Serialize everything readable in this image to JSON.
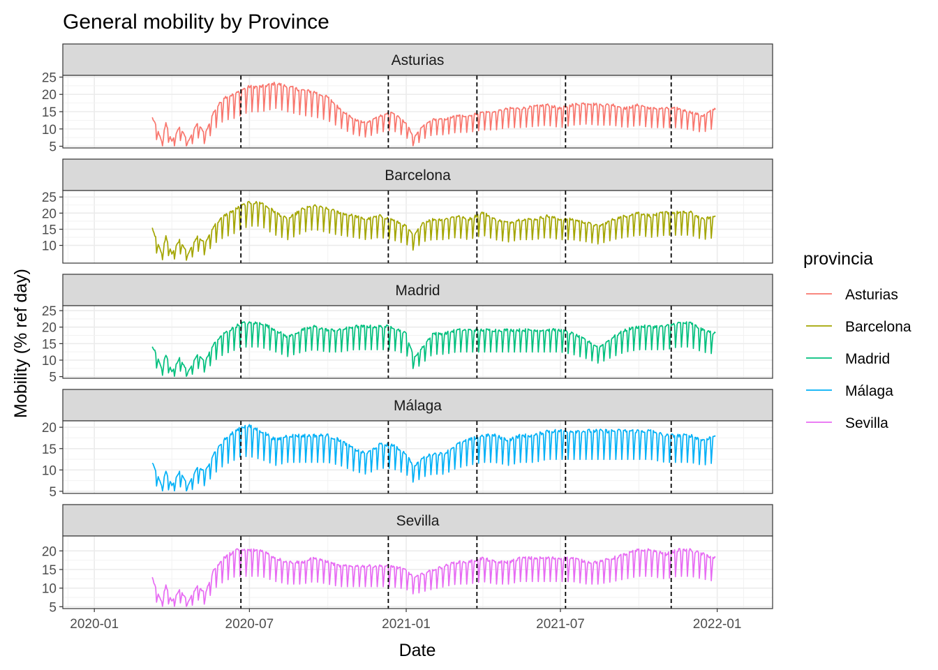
{
  "chart_data": {
    "type": "line",
    "title": "General mobility by Province",
    "xlabel": "Date",
    "ylabel": "Mobility (% ref day)",
    "x_range": [
      "2019-11-25",
      "2022-03-07"
    ],
    "x_ticks": [
      {
        "date": "2020-01-01",
        "label": "2020-01"
      },
      {
        "date": "2020-07-01",
        "label": "2020-07"
      },
      {
        "date": "2021-01-01",
        "label": "2021-01"
      },
      {
        "date": "2021-07-01",
        "label": "2021-07"
      },
      {
        "date": "2022-01-01",
        "label": "2022-01"
      }
    ],
    "vlines": [
      "2020-06-21",
      "2020-12-11",
      "2021-03-25",
      "2021-07-07",
      "2021-11-08"
    ],
    "legend": {
      "title": "provincia",
      "placement": "right"
    },
    "grid": true,
    "facets": [
      {
        "name": "Asturias",
        "color": "#F8766D",
        "ylim": [
          4.5,
          25.5
        ],
        "yticks": [
          5,
          10,
          15,
          20,
          25
        ],
        "points": [
          [
            "2020-03-09",
            12.5
          ],
          [
            "2020-03-14",
            10
          ],
          [
            "2020-03-20",
            6
          ],
          [
            "2020-03-25",
            11
          ],
          [
            "2020-04-01",
            6
          ],
          [
            "2020-04-10",
            10
          ],
          [
            "2020-04-20",
            6
          ],
          [
            "2020-05-01",
            11
          ],
          [
            "2020-05-10",
            8
          ],
          [
            "2020-05-20",
            14
          ],
          [
            "2020-06-01",
            18
          ],
          [
            "2020-06-15",
            19
          ],
          [
            "2020-06-21",
            20
          ],
          [
            "2020-07-01",
            21
          ],
          [
            "2020-07-15",
            21
          ],
          [
            "2020-08-01",
            22
          ],
          [
            "2020-08-15",
            21
          ],
          [
            "2020-09-01",
            20
          ],
          [
            "2020-09-15",
            19.5
          ],
          [
            "2020-10-01",
            18
          ],
          [
            "2020-10-15",
            15
          ],
          [
            "2020-11-01",
            12
          ],
          [
            "2020-11-15",
            11
          ],
          [
            "2020-12-01",
            13
          ],
          [
            "2020-12-15",
            14
          ],
          [
            "2021-01-01",
            11
          ],
          [
            "2021-01-10",
            7
          ],
          [
            "2021-01-20",
            10
          ],
          [
            "2021-02-01",
            12
          ],
          [
            "2021-02-15",
            12
          ],
          [
            "2021-03-01",
            13
          ],
          [
            "2021-03-15",
            13
          ],
          [
            "2021-04-01",
            14
          ],
          [
            "2021-04-15",
            14
          ],
          [
            "2021-05-01",
            15
          ],
          [
            "2021-05-15",
            15
          ],
          [
            "2021-06-01",
            15.5
          ],
          [
            "2021-06-15",
            16
          ],
          [
            "2021-07-01",
            15
          ],
          [
            "2021-07-15",
            16
          ],
          [
            "2021-08-01",
            16.5
          ],
          [
            "2021-08-15",
            16
          ],
          [
            "2021-09-01",
            16
          ],
          [
            "2021-09-15",
            15
          ],
          [
            "2021-10-01",
            16
          ],
          [
            "2021-10-15",
            15
          ],
          [
            "2021-11-01",
            15
          ],
          [
            "2021-11-15",
            15
          ],
          [
            "2021-12-01",
            14
          ],
          [
            "2021-12-15",
            13
          ],
          [
            "2021-12-30",
            15
          ]
        ]
      },
      {
        "name": "Barcelona",
        "color": "#A3A500",
        "ylim": [
          4.5,
          27
        ],
        "yticks": [
          10,
          15,
          20,
          25
        ],
        "points": [
          [
            "2020-03-09",
            14.5
          ],
          [
            "2020-03-14",
            11
          ],
          [
            "2020-03-20",
            7
          ],
          [
            "2020-03-25",
            12
          ],
          [
            "2020-04-01",
            7
          ],
          [
            "2020-04-10",
            11
          ],
          [
            "2020-04-20",
            7
          ],
          [
            "2020-05-01",
            12
          ],
          [
            "2020-05-10",
            10
          ],
          [
            "2020-05-20",
            15
          ],
          [
            "2020-06-01",
            18
          ],
          [
            "2020-06-15",
            20
          ],
          [
            "2020-06-21",
            21
          ],
          [
            "2020-07-01",
            22
          ],
          [
            "2020-07-15",
            22
          ],
          [
            "2020-08-01",
            19
          ],
          [
            "2020-08-15",
            17
          ],
          [
            "2020-09-01",
            20
          ],
          [
            "2020-09-15",
            21
          ],
          [
            "2020-10-01",
            20
          ],
          [
            "2020-10-15",
            19
          ],
          [
            "2020-11-01",
            18
          ],
          [
            "2020-11-15",
            17
          ],
          [
            "2020-12-01",
            18
          ],
          [
            "2020-12-15",
            17
          ],
          [
            "2021-01-01",
            15
          ],
          [
            "2021-01-10",
            12
          ],
          [
            "2021-01-20",
            16
          ],
          [
            "2021-02-01",
            17
          ],
          [
            "2021-02-15",
            17
          ],
          [
            "2021-03-01",
            18
          ],
          [
            "2021-03-15",
            17
          ],
          [
            "2021-04-01",
            19
          ],
          [
            "2021-04-15",
            17
          ],
          [
            "2021-05-01",
            16
          ],
          [
            "2021-05-15",
            17
          ],
          [
            "2021-06-01",
            17
          ],
          [
            "2021-06-15",
            18
          ],
          [
            "2021-07-01",
            17
          ],
          [
            "2021-07-15",
            17
          ],
          [
            "2021-08-01",
            16
          ],
          [
            "2021-08-15",
            15
          ],
          [
            "2021-09-01",
            17
          ],
          [
            "2021-09-15",
            18
          ],
          [
            "2021-10-01",
            19
          ],
          [
            "2021-10-15",
            18
          ],
          [
            "2021-11-01",
            19
          ],
          [
            "2021-11-15",
            19
          ],
          [
            "2021-12-01",
            19
          ],
          [
            "2021-12-15",
            17
          ],
          [
            "2021-12-30",
            18
          ]
        ]
      },
      {
        "name": "Madrid",
        "color": "#00BF7D",
        "ylim": [
          4.5,
          26.5
        ],
        "yticks": [
          5,
          10,
          15,
          20,
          25
        ],
        "points": [
          [
            "2020-03-09",
            13.5
          ],
          [
            "2020-03-14",
            11
          ],
          [
            "2020-03-20",
            7
          ],
          [
            "2020-03-25",
            11
          ],
          [
            "2020-04-01",
            6
          ],
          [
            "2020-04-10",
            10
          ],
          [
            "2020-04-20",
            6
          ],
          [
            "2020-05-01",
            11
          ],
          [
            "2020-05-10",
            9
          ],
          [
            "2020-05-20",
            14
          ],
          [
            "2020-06-01",
            17
          ],
          [
            "2020-06-15",
            19
          ],
          [
            "2020-06-21",
            20
          ],
          [
            "2020-07-01",
            20
          ],
          [
            "2020-07-15",
            20
          ],
          [
            "2020-08-01",
            18
          ],
          [
            "2020-08-15",
            16
          ],
          [
            "2020-09-01",
            18
          ],
          [
            "2020-09-15",
            19
          ],
          [
            "2020-10-01",
            18
          ],
          [
            "2020-10-15",
            18
          ],
          [
            "2020-11-01",
            19
          ],
          [
            "2020-11-15",
            19
          ],
          [
            "2020-12-01",
            19
          ],
          [
            "2020-12-15",
            19
          ],
          [
            "2021-01-01",
            17
          ],
          [
            "2021-01-10",
            10
          ],
          [
            "2021-01-20",
            13
          ],
          [
            "2021-02-01",
            17
          ],
          [
            "2021-02-15",
            17
          ],
          [
            "2021-03-01",
            18
          ],
          [
            "2021-03-15",
            18
          ],
          [
            "2021-04-01",
            18
          ],
          [
            "2021-04-15",
            18
          ],
          [
            "2021-05-01",
            18
          ],
          [
            "2021-05-15",
            18
          ],
          [
            "2021-06-01",
            18
          ],
          [
            "2021-06-15",
            18
          ],
          [
            "2021-07-01",
            18
          ],
          [
            "2021-07-15",
            17
          ],
          [
            "2021-08-01",
            15
          ],
          [
            "2021-08-15",
            13
          ],
          [
            "2021-09-01",
            16
          ],
          [
            "2021-09-15",
            18
          ],
          [
            "2021-10-01",
            19
          ],
          [
            "2021-10-15",
            19
          ],
          [
            "2021-11-01",
            19
          ],
          [
            "2021-11-15",
            20
          ],
          [
            "2021-12-01",
            20
          ],
          [
            "2021-12-15",
            18
          ],
          [
            "2021-12-30",
            17
          ]
        ]
      },
      {
        "name": "Málaga",
        "color": "#00B0F6",
        "ylim": [
          4.5,
          21.5
        ],
        "yticks": [
          5,
          10,
          15,
          20
        ],
        "points": [
          [
            "2020-03-09",
            11
          ],
          [
            "2020-03-14",
            9
          ],
          [
            "2020-03-20",
            6
          ],
          [
            "2020-03-25",
            9
          ],
          [
            "2020-04-01",
            6
          ],
          [
            "2020-04-10",
            9
          ],
          [
            "2020-04-20",
            6
          ],
          [
            "2020-05-01",
            10
          ],
          [
            "2020-05-10",
            9
          ],
          [
            "2020-05-20",
            13
          ],
          [
            "2020-06-01",
            16
          ],
          [
            "2020-06-15",
            18
          ],
          [
            "2020-06-21",
            19
          ],
          [
            "2020-07-01",
            19
          ],
          [
            "2020-07-15",
            18
          ],
          [
            "2020-08-01",
            16
          ],
          [
            "2020-08-15",
            17
          ],
          [
            "2020-09-01",
            17
          ],
          [
            "2020-09-15",
            17
          ],
          [
            "2020-10-01",
            17
          ],
          [
            "2020-10-15",
            16
          ],
          [
            "2020-11-01",
            14
          ],
          [
            "2020-11-15",
            13
          ],
          [
            "2020-12-01",
            15
          ],
          [
            "2020-12-15",
            15
          ],
          [
            "2021-01-01",
            13
          ],
          [
            "2021-01-10",
            10
          ],
          [
            "2021-01-20",
            12
          ],
          [
            "2021-02-01",
            13
          ],
          [
            "2021-02-15",
            13
          ],
          [
            "2021-03-01",
            15
          ],
          [
            "2021-03-15",
            16
          ],
          [
            "2021-04-01",
            17
          ],
          [
            "2021-04-15",
            17
          ],
          [
            "2021-05-01",
            16
          ],
          [
            "2021-05-15",
            17
          ],
          [
            "2021-06-01",
            17
          ],
          [
            "2021-06-15",
            18
          ],
          [
            "2021-07-01",
            18
          ],
          [
            "2021-07-15",
            18
          ],
          [
            "2021-08-01",
            18
          ],
          [
            "2021-08-15",
            18
          ],
          [
            "2021-09-01",
            18
          ],
          [
            "2021-09-15",
            18
          ],
          [
            "2021-10-01",
            18
          ],
          [
            "2021-10-15",
            18
          ],
          [
            "2021-11-01",
            17
          ],
          [
            "2021-11-15",
            17
          ],
          [
            "2021-12-01",
            17
          ],
          [
            "2021-12-15",
            16
          ],
          [
            "2021-12-30",
            17
          ]
        ]
      },
      {
        "name": "Sevilla",
        "color": "#E76BF3",
        "ylim": [
          4.5,
          24
        ],
        "yticks": [
          5,
          10,
          15,
          20
        ],
        "points": [
          [
            "2020-03-09",
            12
          ],
          [
            "2020-03-14",
            9
          ],
          [
            "2020-03-20",
            6
          ],
          [
            "2020-03-25",
            10
          ],
          [
            "2020-04-01",
            6
          ],
          [
            "2020-04-10",
            9
          ],
          [
            "2020-04-20",
            6
          ],
          [
            "2020-05-01",
            10
          ],
          [
            "2020-05-10",
            8
          ],
          [
            "2020-05-20",
            14
          ],
          [
            "2020-06-01",
            17
          ],
          [
            "2020-06-15",
            19
          ],
          [
            "2020-06-21",
            19
          ],
          [
            "2020-07-01",
            19
          ],
          [
            "2020-07-15",
            19
          ],
          [
            "2020-08-01",
            17
          ],
          [
            "2020-08-15",
            16
          ],
          [
            "2020-09-01",
            16
          ],
          [
            "2020-09-15",
            17
          ],
          [
            "2020-10-01",
            16
          ],
          [
            "2020-10-15",
            15
          ],
          [
            "2020-11-01",
            15
          ],
          [
            "2020-11-15",
            15
          ],
          [
            "2020-12-01",
            15
          ],
          [
            "2020-12-15",
            15
          ],
          [
            "2021-01-01",
            14
          ],
          [
            "2021-01-10",
            12
          ],
          [
            "2021-01-20",
            13
          ],
          [
            "2021-02-01",
            14
          ],
          [
            "2021-02-15",
            15
          ],
          [
            "2021-03-01",
            16
          ],
          [
            "2021-03-15",
            16
          ],
          [
            "2021-04-01",
            17
          ],
          [
            "2021-04-15",
            16
          ],
          [
            "2021-05-01",
            16
          ],
          [
            "2021-05-15",
            17
          ],
          [
            "2021-06-01",
            17
          ],
          [
            "2021-06-15",
            17
          ],
          [
            "2021-07-01",
            17
          ],
          [
            "2021-07-15",
            17
          ],
          [
            "2021-08-01",
            16
          ],
          [
            "2021-08-15",
            16
          ],
          [
            "2021-09-01",
            17
          ],
          [
            "2021-09-15",
            18
          ],
          [
            "2021-10-01",
            19
          ],
          [
            "2021-10-15",
            19
          ],
          [
            "2021-11-01",
            18
          ],
          [
            "2021-11-15",
            19
          ],
          [
            "2021-12-01",
            19
          ],
          [
            "2021-12-15",
            18
          ],
          [
            "2021-12-30",
            17
          ]
        ]
      }
    ]
  }
}
